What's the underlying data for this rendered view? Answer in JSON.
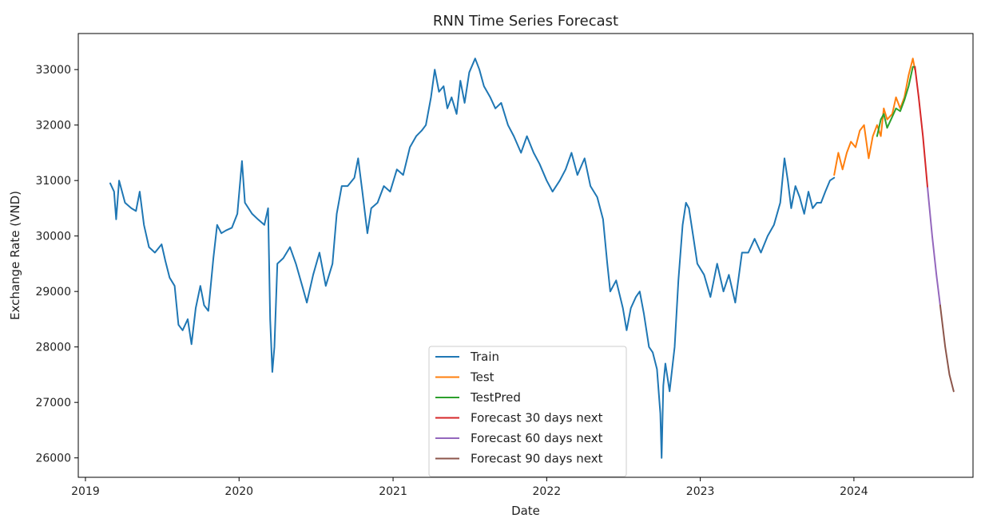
{
  "chart_data": {
    "type": "line",
    "title": "RNN Time Series Forecast",
    "xlabel": "Date",
    "ylabel": "Exchange Rate (VND)",
    "xlim": [
      "2018-12-15",
      "2024-10-10"
    ],
    "ylim": [
      25650,
      33650
    ],
    "x_ticks": [
      "2019",
      "2020",
      "2021",
      "2022",
      "2023",
      "2024"
    ],
    "x_tick_dates": [
      "2019-01-01",
      "2020-01-01",
      "2021-01-01",
      "2022-01-01",
      "2023-01-01",
      "2024-01-01"
    ],
    "y_ticks": [
      26000,
      27000,
      28000,
      29000,
      30000,
      31000,
      32000,
      33000
    ],
    "grid": false,
    "legend_position": "bottom-center",
    "series": [
      {
        "name": "Train",
        "color": "#1f77b4",
        "points": [
          [
            "2019-03-01",
            30950
          ],
          [
            "2019-03-10",
            30800
          ],
          [
            "2019-03-15",
            30300
          ],
          [
            "2019-03-22",
            31000
          ],
          [
            "2019-04-05",
            30600
          ],
          [
            "2019-04-20",
            30500
          ],
          [
            "2019-05-01",
            30450
          ],
          [
            "2019-05-10",
            30800
          ],
          [
            "2019-05-20",
            30200
          ],
          [
            "2019-06-01",
            29800
          ],
          [
            "2019-06-15",
            29700
          ],
          [
            "2019-07-01",
            29850
          ],
          [
            "2019-07-10",
            29550
          ],
          [
            "2019-07-20",
            29250
          ],
          [
            "2019-08-01",
            29100
          ],
          [
            "2019-08-10",
            28400
          ],
          [
            "2019-08-20",
            28300
          ],
          [
            "2019-09-01",
            28500
          ],
          [
            "2019-09-10",
            28050
          ],
          [
            "2019-09-20",
            28700
          ],
          [
            "2019-10-01",
            29100
          ],
          [
            "2019-10-10",
            28750
          ],
          [
            "2019-10-20",
            28650
          ],
          [
            "2019-11-01",
            29600
          ],
          [
            "2019-11-10",
            30200
          ],
          [
            "2019-11-20",
            30050
          ],
          [
            "2019-12-01",
            30100
          ],
          [
            "2019-12-15",
            30150
          ],
          [
            "2019-12-28",
            30400
          ],
          [
            "2020-01-08",
            31350
          ],
          [
            "2020-01-15",
            30600
          ],
          [
            "2020-02-01",
            30400
          ],
          [
            "2020-02-15",
            30300
          ],
          [
            "2020-03-01",
            30200
          ],
          [
            "2020-03-10",
            30500
          ],
          [
            "2020-03-15",
            28500
          ],
          [
            "2020-03-20",
            27550
          ],
          [
            "2020-03-25",
            28000
          ],
          [
            "2020-04-01",
            29500
          ],
          [
            "2020-04-15",
            29600
          ],
          [
            "2020-05-01",
            29800
          ],
          [
            "2020-05-15",
            29500
          ],
          [
            "2020-06-01",
            29050
          ],
          [
            "2020-06-10",
            28800
          ],
          [
            "2020-06-25",
            29300
          ],
          [
            "2020-07-10",
            29700
          ],
          [
            "2020-07-25",
            29100
          ],
          [
            "2020-08-10",
            29500
          ],
          [
            "2020-08-20",
            30400
          ],
          [
            "2020-09-01",
            30900
          ],
          [
            "2020-09-15",
            30900
          ],
          [
            "2020-10-01",
            31050
          ],
          [
            "2020-10-10",
            31400
          ],
          [
            "2020-10-20",
            30800
          ],
          [
            "2020-11-01",
            30050
          ],
          [
            "2020-11-10",
            30500
          ],
          [
            "2020-11-25",
            30600
          ],
          [
            "2020-12-10",
            30900
          ],
          [
            "2020-12-25",
            30800
          ],
          [
            "2021-01-10",
            31200
          ],
          [
            "2021-01-25",
            31100
          ],
          [
            "2021-02-10",
            31600
          ],
          [
            "2021-02-25",
            31800
          ],
          [
            "2021-03-10",
            31900
          ],
          [
            "2021-03-20",
            32000
          ],
          [
            "2021-04-01",
            32500
          ],
          [
            "2021-04-10",
            33000
          ],
          [
            "2021-04-20",
            32600
          ],
          [
            "2021-05-01",
            32700
          ],
          [
            "2021-05-10",
            32300
          ],
          [
            "2021-05-20",
            32500
          ],
          [
            "2021-06-01",
            32200
          ],
          [
            "2021-06-10",
            32800
          ],
          [
            "2021-06-20",
            32400
          ],
          [
            "2021-07-01",
            32950
          ],
          [
            "2021-07-15",
            33200
          ],
          [
            "2021-07-25",
            33000
          ],
          [
            "2021-08-05",
            32700
          ],
          [
            "2021-08-20",
            32500
          ],
          [
            "2021-09-01",
            32300
          ],
          [
            "2021-09-15",
            32400
          ],
          [
            "2021-10-01",
            32000
          ],
          [
            "2021-10-15",
            31800
          ],
          [
            "2021-11-01",
            31500
          ],
          [
            "2021-11-15",
            31800
          ],
          [
            "2021-12-01",
            31500
          ],
          [
            "2021-12-15",
            31300
          ],
          [
            "2022-01-01",
            31000
          ],
          [
            "2022-01-15",
            30800
          ],
          [
            "2022-02-01",
            31000
          ],
          [
            "2022-02-15",
            31200
          ],
          [
            "2022-03-01",
            31500
          ],
          [
            "2022-03-15",
            31100
          ],
          [
            "2022-04-01",
            31400
          ],
          [
            "2022-04-15",
            30900
          ],
          [
            "2022-05-01",
            30700
          ],
          [
            "2022-05-15",
            30300
          ],
          [
            "2022-05-25",
            29500
          ],
          [
            "2022-06-01",
            29000
          ],
          [
            "2022-06-15",
            29200
          ],
          [
            "2022-07-01",
            28700
          ],
          [
            "2022-07-10",
            28300
          ],
          [
            "2022-07-20",
            28700
          ],
          [
            "2022-08-01",
            28900
          ],
          [
            "2022-08-10",
            29000
          ],
          [
            "2022-08-20",
            28600
          ],
          [
            "2022-09-01",
            28000
          ],
          [
            "2022-09-10",
            27900
          ],
          [
            "2022-09-20",
            27600
          ],
          [
            "2022-09-28",
            26800
          ],
          [
            "2022-10-01",
            26000
          ],
          [
            "2022-10-05",
            27300
          ],
          [
            "2022-10-10",
            27700
          ],
          [
            "2022-10-20",
            27200
          ],
          [
            "2022-11-01",
            28000
          ],
          [
            "2022-11-10",
            29200
          ],
          [
            "2022-11-20",
            30200
          ],
          [
            "2022-11-28",
            30600
          ],
          [
            "2022-12-05",
            30500
          ],
          [
            "2022-12-15",
            30000
          ],
          [
            "2022-12-25",
            29500
          ],
          [
            "2023-01-10",
            29300
          ],
          [
            "2023-01-25",
            28900
          ],
          [
            "2023-02-10",
            29500
          ],
          [
            "2023-02-25",
            29000
          ],
          [
            "2023-03-10",
            29300
          ],
          [
            "2023-03-25",
            28800
          ],
          [
            "2023-04-10",
            29700
          ],
          [
            "2023-04-25",
            29700
          ],
          [
            "2023-05-10",
            29950
          ],
          [
            "2023-05-25",
            29700
          ],
          [
            "2023-06-10",
            30000
          ],
          [
            "2023-06-25",
            30200
          ],
          [
            "2023-07-10",
            30600
          ],
          [
            "2023-07-20",
            31400
          ],
          [
            "2023-07-28",
            31000
          ],
          [
            "2023-08-05",
            30500
          ],
          [
            "2023-08-15",
            30900
          ],
          [
            "2023-08-25",
            30700
          ],
          [
            "2023-09-05",
            30400
          ],
          [
            "2023-09-15",
            30800
          ],
          [
            "2023-09-25",
            30500
          ],
          [
            "2023-10-05",
            30600
          ],
          [
            "2023-10-15",
            30600
          ],
          [
            "2023-10-25",
            30800
          ],
          [
            "2023-11-05",
            31000
          ],
          [
            "2023-11-15",
            31050
          ]
        ]
      },
      {
        "name": "Test",
        "color": "#ff7f0e",
        "points": [
          [
            "2023-11-15",
            31100
          ],
          [
            "2023-11-25",
            31500
          ],
          [
            "2023-12-05",
            31200
          ],
          [
            "2023-12-15",
            31500
          ],
          [
            "2023-12-25",
            31700
          ],
          [
            "2024-01-05",
            31600
          ],
          [
            "2024-01-15",
            31900
          ],
          [
            "2024-01-25",
            32000
          ],
          [
            "2024-02-05",
            31400
          ],
          [
            "2024-02-15",
            31800
          ],
          [
            "2024-02-25",
            32000
          ],
          [
            "2024-03-05",
            31800
          ],
          [
            "2024-03-12",
            32300
          ],
          [
            "2024-03-20",
            32100
          ],
          [
            "2024-04-01",
            32200
          ],
          [
            "2024-04-10",
            32500
          ],
          [
            "2024-04-20",
            32300
          ],
          [
            "2024-04-30",
            32500
          ],
          [
            "2024-05-10",
            32900
          ],
          [
            "2024-05-20",
            33200
          ],
          [
            "2024-05-25",
            33000
          ]
        ]
      },
      {
        "name": "TestPred",
        "color": "#2ca02c",
        "points": [
          [
            "2024-02-25",
            31800
          ],
          [
            "2024-03-05",
            32100
          ],
          [
            "2024-03-12",
            32200
          ],
          [
            "2024-03-20",
            31950
          ],
          [
            "2024-04-01",
            32150
          ],
          [
            "2024-04-10",
            32300
          ],
          [
            "2024-04-20",
            32250
          ],
          [
            "2024-04-30",
            32450
          ],
          [
            "2024-05-10",
            32700
          ],
          [
            "2024-05-20",
            33050
          ],
          [
            "2024-05-25",
            33050
          ]
        ]
      },
      {
        "name": "Forecast 30 days next",
        "color": "#d62728",
        "points": [
          [
            "2024-05-25",
            33050
          ],
          [
            "2024-06-03",
            32500
          ],
          [
            "2024-06-13",
            31800
          ],
          [
            "2024-06-24",
            30870
          ]
        ]
      },
      {
        "name": "Forecast 60 days next",
        "color": "#9467bd",
        "points": [
          [
            "2024-06-24",
            30870
          ],
          [
            "2024-07-05",
            30000
          ],
          [
            "2024-07-15",
            29300
          ],
          [
            "2024-07-24",
            28750
          ]
        ]
      },
      {
        "name": "Forecast 90 days next",
        "color": "#8c564b",
        "points": [
          [
            "2024-07-24",
            28750
          ],
          [
            "2024-08-05",
            28000
          ],
          [
            "2024-08-15",
            27500
          ],
          [
            "2024-08-25",
            27200
          ]
        ]
      }
    ]
  }
}
